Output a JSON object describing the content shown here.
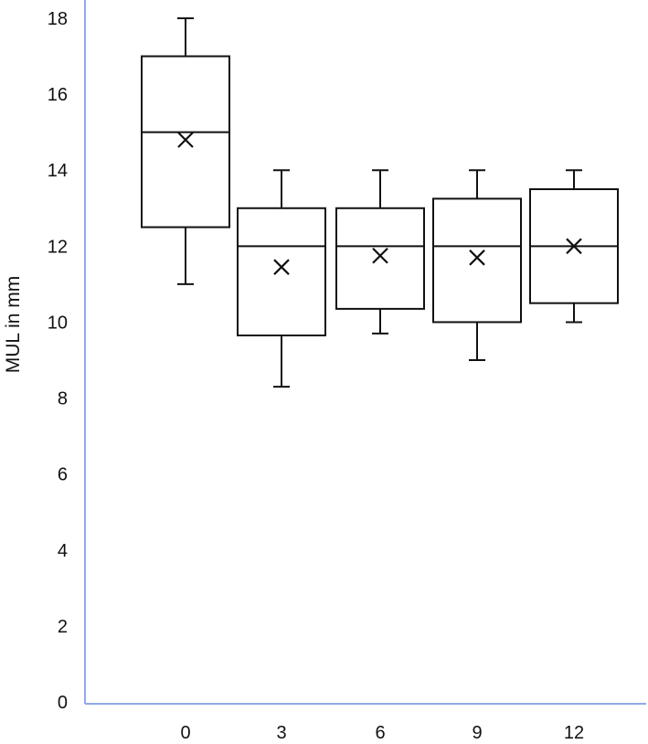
{
  "chart_data": {
    "type": "box",
    "title": "",
    "xlabel": "",
    "ylabel": "MUL in mm",
    "ylim": [
      0,
      18
    ],
    "yticks": [
      0,
      2,
      4,
      6,
      8,
      10,
      12,
      14,
      16,
      18
    ],
    "categories": [
      "0",
      "3",
      "6",
      "9",
      "12"
    ],
    "boxes": [
      {
        "category": "0",
        "min": 11.0,
        "q1": 12.5,
        "median": 15.0,
        "q3": 17.0,
        "max": 18.0,
        "mean": 14.8
      },
      {
        "category": "3",
        "min": 8.3,
        "q1": 9.65,
        "median": 12.0,
        "q3": 13.0,
        "max": 14.0,
        "mean": 11.45
      },
      {
        "category": "6",
        "min": 9.7,
        "q1": 10.35,
        "median": 12.0,
        "q3": 13.0,
        "max": 14.0,
        "mean": 11.75
      },
      {
        "category": "9",
        "min": 9.0,
        "q1": 10.0,
        "median": 12.0,
        "q3": 13.25,
        "max": 14.0,
        "mean": 11.7
      },
      {
        "category": "12",
        "min": 10.0,
        "q1": 10.5,
        "median": 12.0,
        "q3": 13.5,
        "max": 14.0,
        "mean": 12.0
      }
    ],
    "grid": false,
    "legend": "none",
    "colors": {
      "axis": "#8ea9e8",
      "box_stroke": "#111111",
      "box_fill": "#ffffff"
    }
  }
}
